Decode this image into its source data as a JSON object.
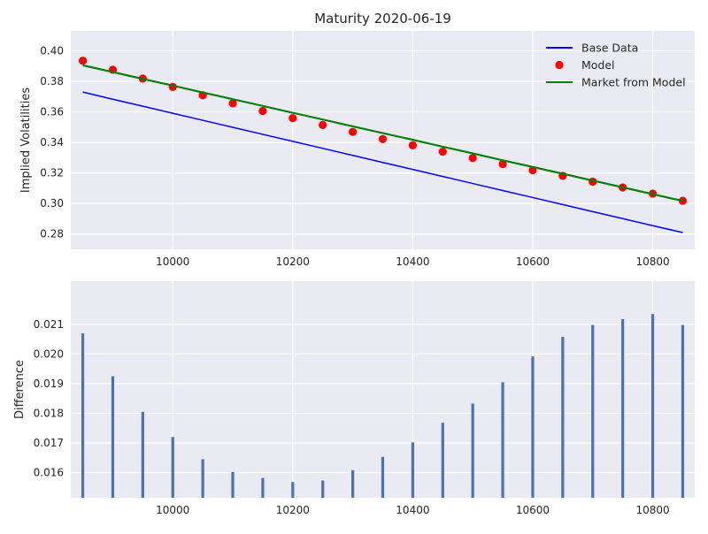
{
  "chart_data": [
    {
      "type": "line",
      "title": "Maturity 2020-06-19",
      "xlabel": "",
      "ylabel": "Implied Volatilities",
      "xlim": [
        9830,
        10870
      ],
      "ylim": [
        0.27,
        0.413
      ],
      "xticks": [
        10000,
        10200,
        10400,
        10600,
        10800
      ],
      "yticks": [
        0.28,
        0.3,
        0.32,
        0.34,
        0.36,
        0.38,
        0.4
      ],
      "grid": true,
      "legend_position": "top-right",
      "x": [
        9850,
        9900,
        9950,
        10000,
        10050,
        10100,
        10150,
        10200,
        10250,
        10300,
        10350,
        10400,
        10450,
        10500,
        10550,
        10600,
        10650,
        10700,
        10750,
        10800,
        10850
      ],
      "series": [
        {
          "name": "Base Data",
          "style": "line",
          "color": "#0000ff",
          "values": [
            0.373,
            0.3683,
            0.3637,
            0.3591,
            0.3545,
            0.3499,
            0.3453,
            0.3407,
            0.3361,
            0.3315,
            0.3269,
            0.3223,
            0.3177,
            0.3131,
            0.3085,
            0.3039,
            0.2993,
            0.2947,
            0.2901,
            0.2855,
            0.281
          ]
        },
        {
          "name": "Model",
          "style": "markers",
          "color": "#ff0000",
          "values": [
            0.3935,
            0.3876,
            0.3818,
            0.3763,
            0.3709,
            0.3656,
            0.3606,
            0.3559,
            0.3514,
            0.3469,
            0.3422,
            0.3381,
            0.3339,
            0.3298,
            0.3258,
            0.3218,
            0.3181,
            0.3143,
            0.3105,
            0.3065,
            0.3018
          ]
        },
        {
          "name": "Market from Model",
          "style": "line",
          "color": "#008000",
          "values": [
            0.3905,
            0.3861,
            0.3816,
            0.3772,
            0.3727,
            0.3683,
            0.3639,
            0.3594,
            0.355,
            0.3505,
            0.3461,
            0.3417,
            0.3372,
            0.3328,
            0.3283,
            0.3239,
            0.3195,
            0.315,
            0.3106,
            0.3061,
            0.3017
          ]
        }
      ]
    },
    {
      "type": "bar",
      "title": "",
      "xlabel": "",
      "ylabel": "Difference",
      "xlim": [
        9830,
        10870
      ],
      "ylim": [
        0.01515,
        0.02246
      ],
      "xticks": [
        10000,
        10200,
        10400,
        10600,
        10800
      ],
      "yticks": [
        0.016,
        0.017,
        0.018,
        0.019,
        0.02,
        0.021
      ],
      "grid": true,
      "color": "#4c72b0",
      "x": [
        9850,
        9900,
        9950,
        10000,
        10050,
        10100,
        10150,
        10200,
        10250,
        10300,
        10350,
        10400,
        10450,
        10500,
        10550,
        10600,
        10650,
        10700,
        10750,
        10800,
        10850
      ],
      "values": [
        0.0207,
        0.01925,
        0.01805,
        0.0172,
        0.01645,
        0.01602,
        0.01582,
        0.01568,
        0.01573,
        0.01608,
        0.01653,
        0.01702,
        0.01768,
        0.01833,
        0.01905,
        0.01992,
        0.02058,
        0.02098,
        0.02118,
        0.02135,
        0.02098
      ]
    }
  ]
}
